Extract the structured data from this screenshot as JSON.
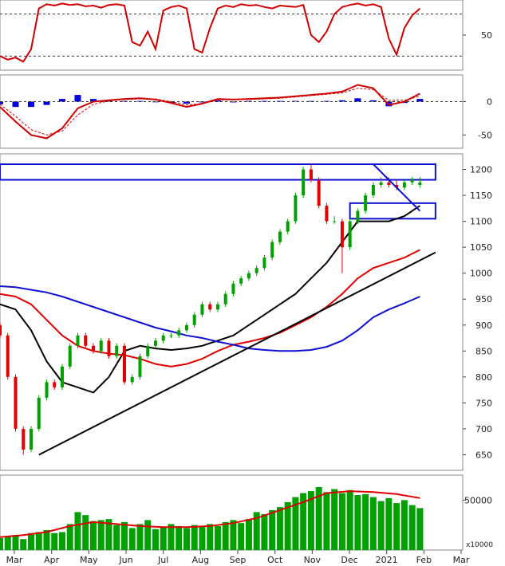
{
  "chart_data": {
    "type": "candlestick",
    "colors": {
      "up": "#00a000",
      "down": "#e00000",
      "ma_black": "#000000",
      "ma_red": "#e00000",
      "ma_blue": "#1010d0",
      "channel": "#1010d0",
      "volume": "#00a000",
      "volume_ma": "#e00000",
      "macd_hist": "#0000e0",
      "oscillator": "#d00000"
    },
    "x_axis": {
      "labels": [
        "Mar",
        "Apr",
        "May",
        "Jun",
        "Jul",
        "Aug",
        "Sep",
        "Oct",
        "Nov",
        "Dec",
        "2021",
        "Feb",
        "Mar"
      ]
    },
    "panels": [
      {
        "id": "oscillator",
        "ylim": [
          0,
          100
        ],
        "ticks": [
          "50"
        ],
        "reference_lines": [
          80,
          20
        ],
        "series": [
          {
            "x": [
              0,
              2,
              4,
              6,
              8,
              10,
              12,
              14,
              16,
              18,
              20,
              22,
              24,
              26,
              28,
              30,
              32,
              34,
              36,
              38,
              40,
              42,
              44,
              46,
              48,
              50,
              52,
              54,
              56,
              58,
              60,
              62,
              64,
              66,
              68,
              70,
              72,
              74,
              76,
              78,
              80,
              82,
              84,
              86,
              88,
              90,
              92,
              94,
              96,
              98,
              100,
              102,
              104,
              106,
              108
            ],
            "values": [
              20,
              15,
              18,
              12,
              30,
              88,
              94,
              92,
              95,
              93,
              94,
              91,
              92,
              89,
              93,
              94,
              92,
              40,
              35,
              55,
              30,
              85,
              90,
              92,
              88,
              30,
              25,
              60,
              88,
              92,
              90,
              94,
              92,
              93,
              90,
              88,
              92,
              91,
              90,
              93,
              50,
              40,
              55,
              80,
              90,
              93,
              95,
              92,
              94,
              90,
              45,
              22,
              60,
              78,
              88
            ]
          }
        ]
      },
      {
        "id": "macd",
        "ylim": [
          -70,
          40
        ],
        "ticks": [
          "0",
          "-50"
        ],
        "series": [
          {
            "name": "macd",
            "x": [
              0,
              4,
              8,
              12,
              16,
              20,
              24,
              28,
              32,
              36,
              40,
              44,
              48,
              52,
              56,
              60,
              64,
              68,
              72,
              76,
              80,
              84,
              88,
              92,
              96,
              100,
              104,
              108
            ],
            "values": [
              -8,
              -30,
              -50,
              -55,
              -40,
              -10,
              0,
              2,
              4,
              5,
              3,
              -2,
              -8,
              -3,
              4,
              3,
              4,
              5,
              6,
              8,
              10,
              12,
              15,
              25,
              20,
              -5,
              0,
              12
            ]
          },
          {
            "name": "signal",
            "x": [
              0,
              4,
              8,
              12,
              16,
              20,
              24,
              28,
              32,
              36,
              40,
              44,
              48,
              52,
              56,
              60,
              64,
              68,
              72,
              76,
              80,
              84,
              88,
              92,
              96,
              100,
              104,
              108
            ],
            "values": [
              -4,
              -22,
              -42,
              -50,
              -44,
              -20,
              -4,
              1,
              3,
              4,
              4,
              0,
              -5,
              -3,
              2,
              3,
              3,
              4,
              5,
              7,
              9,
              11,
              13,
              20,
              18,
              2,
              2,
              8
            ]
          },
          {
            "name": "histogram",
            "x": [
              0,
              4,
              8,
              12,
              16,
              20,
              24,
              28,
              32,
              36,
              40,
              44,
              48,
              52,
              56,
              60,
              64,
              68,
              72,
              76,
              80,
              84,
              88,
              92,
              96,
              100,
              104,
              108
            ],
            "values": [
              -4,
              -8,
              -8,
              -5,
              4,
              10,
              4,
              1,
              1,
              1,
              -1,
              -2,
              -3,
              0,
              2,
              0,
              1,
              1,
              1,
              1,
              1,
              1,
              2,
              5,
              2,
              -7,
              -2,
              4
            ]
          }
        ]
      },
      {
        "id": "price",
        "ylim": [
          620,
          1230
        ],
        "ticks": [
          "1200",
          "1150",
          "1100",
          "1050",
          "1000",
          "950",
          "900",
          "850",
          "800",
          "750",
          "700",
          "650"
        ],
        "candles": {
          "x": [
            0,
            2,
            4,
            6,
            8,
            10,
            12,
            14,
            16,
            18,
            20,
            22,
            24,
            26,
            28,
            30,
            32,
            34,
            36,
            38,
            40,
            42,
            44,
            46,
            48,
            50,
            52,
            54,
            56,
            58,
            60,
            62,
            64,
            66,
            68,
            70,
            72,
            74,
            76,
            78,
            80,
            82,
            84,
            86,
            88,
            90,
            92,
            94,
            96,
            98,
            100,
            102,
            104,
            106,
            108
          ],
          "open": [
            900,
            880,
            800,
            700,
            660,
            700,
            760,
            790,
            780,
            820,
            860,
            880,
            860,
            850,
            870,
            840,
            860,
            790,
            800,
            840,
            860,
            870,
            880,
            880,
            890,
            900,
            920,
            940,
            930,
            940,
            960,
            980,
            990,
            1000,
            1010,
            1030,
            1060,
            1080,
            1100,
            1150,
            1200,
            1180,
            1130,
            1100,
            1100,
            1050,
            1100,
            1120,
            1150,
            1170,
            1175,
            1170,
            1165,
            1175,
            1170
          ],
          "close": [
            880,
            800,
            700,
            660,
            700,
            760,
            790,
            780,
            820,
            860,
            880,
            860,
            850,
            870,
            840,
            860,
            790,
            800,
            840,
            860,
            870,
            880,
            880,
            890,
            900,
            920,
            940,
            930,
            940,
            960,
            980,
            990,
            1000,
            1010,
            1030,
            1060,
            1080,
            1100,
            1150,
            1200,
            1180,
            1130,
            1100,
            1100,
            1050,
            1100,
            1120,
            1150,
            1170,
            1175,
            1170,
            1165,
            1175,
            1180,
            1175
          ],
          "high": [
            905,
            885,
            805,
            705,
            705,
            765,
            795,
            795,
            825,
            865,
            885,
            885,
            865,
            875,
            875,
            865,
            865,
            805,
            845,
            865,
            875,
            885,
            885,
            895,
            905,
            925,
            945,
            945,
            945,
            965,
            985,
            995,
            1005,
            1015,
            1035,
            1065,
            1085,
            1105,
            1155,
            1205,
            1210,
            1185,
            1135,
            1110,
            1105,
            1105,
            1125,
            1155,
            1175,
            1185,
            1185,
            1180,
            1180,
            1185,
            1185
          ],
          "low": [
            875,
            795,
            695,
            650,
            655,
            695,
            755,
            775,
            775,
            815,
            855,
            855,
            845,
            845,
            835,
            835,
            785,
            785,
            795,
            835,
            855,
            865,
            875,
            875,
            885,
            895,
            915,
            925,
            925,
            935,
            955,
            975,
            985,
            995,
            1005,
            1025,
            1055,
            1075,
            1095,
            1145,
            1175,
            1125,
            1095,
            1095,
            1000,
            1045,
            1095,
            1115,
            1145,
            1165,
            1165,
            1160,
            1160,
            1170,
            1165
          ]
        },
        "moving_averages": [
          {
            "name": "ma_black",
            "color": "#000000",
            "x": [
              0,
              4,
              8,
              12,
              16,
              20,
              24,
              28,
              32,
              36,
              40,
              44,
              48,
              52,
              56,
              60,
              64,
              68,
              72,
              76,
              80,
              84,
              88,
              92,
              96,
              100,
              104,
              108
            ],
            "values": [
              940,
              930,
              890,
              830,
              790,
              780,
              770,
              800,
              850,
              860,
              855,
              852,
              855,
              860,
              870,
              880,
              900,
              920,
              940,
              960,
              990,
              1020,
              1060,
              1100,
              1100,
              1100,
              1110,
              1130
            ]
          },
          {
            "name": "ma_red",
            "color": "#e00000",
            "x": [
              0,
              4,
              8,
              12,
              16,
              20,
              24,
              28,
              32,
              36,
              40,
              44,
              48,
              52,
              56,
              60,
              64,
              68,
              72,
              76,
              80,
              84,
              88,
              92,
              96,
              100,
              104,
              108
            ],
            "values": [
              960,
              955,
              940,
              910,
              880,
              860,
              850,
              845,
              842,
              835,
              825,
              820,
              825,
              835,
              850,
              862,
              868,
              875,
              885,
              900,
              915,
              935,
              960,
              990,
              1010,
              1020,
              1030,
              1045
            ]
          },
          {
            "name": "ma_blue",
            "color": "#1010d0",
            "x": [
              0,
              4,
              8,
              12,
              16,
              20,
              24,
              28,
              32,
              36,
              40,
              44,
              48,
              52,
              56,
              60,
              64,
              68,
              72,
              76,
              80,
              84,
              88,
              92,
              96,
              100,
              104,
              108
            ],
            "values": [
              975,
              973,
              968,
              963,
              955,
              945,
              935,
              925,
              915,
              905,
              895,
              888,
              880,
              875,
              868,
              862,
              855,
              852,
              850,
              850,
              852,
              858,
              870,
              890,
              915,
              930,
              942,
              955
            ]
          }
        ],
        "trendlines": [
          {
            "x": [
              10,
              112
            ],
            "values": [
              650,
              1040
            ]
          },
          {
            "x": [
              96,
              108
            ],
            "values": [
              1210,
              1120
            ]
          }
        ],
        "channels": [
          {
            "x": [
              0,
              112
            ],
            "values": [
              1180,
              1210
            ]
          },
          {
            "x": [
              90,
              112
            ],
            "values": [
              1105,
              1135
            ]
          }
        ]
      },
      {
        "id": "volume",
        "ylim": [
          0,
          75000
        ],
        "ticks": [
          "50000"
        ],
        "unit_label": "x10000",
        "bars": {
          "x": [
            0,
            2,
            4,
            6,
            8,
            10,
            12,
            14,
            16,
            18,
            20,
            22,
            24,
            26,
            28,
            30,
            32,
            34,
            36,
            38,
            40,
            42,
            44,
            46,
            48,
            50,
            52,
            54,
            56,
            58,
            60,
            62,
            64,
            66,
            68,
            70,
            72,
            74,
            76,
            78,
            80,
            82,
            84,
            86,
            88,
            90,
            92,
            94,
            96,
            98,
            100,
            102,
            104,
            106,
            108
          ],
          "values": [
            12000,
            14000,
            15000,
            11000,
            17000,
            18000,
            20000,
            17000,
            18000,
            26000,
            38000,
            35000,
            29000,
            30000,
            31000,
            25000,
            28000,
            22000,
            26000,
            30000,
            21000,
            23000,
            26000,
            24000,
            22000,
            25000,
            23000,
            26000,
            24000,
            28000,
            30000,
            27000,
            31000,
            38000,
            36000,
            40000,
            43000,
            48000,
            53000,
            57000,
            59000,
            63000,
            58000,
            61000,
            57000,
            60000,
            55000,
            56000,
            53000,
            49000,
            52000,
            47000,
            50000,
            45000,
            42000
          ]
        },
        "ma": {
          "x": [
            0,
            6,
            12,
            18,
            24,
            30,
            36,
            42,
            48,
            54,
            60,
            66,
            72,
            78,
            84,
            90,
            96,
            102,
            108
          ],
          "values": [
            13000,
            15000,
            18000,
            24000,
            28000,
            26000,
            24000,
            23000,
            23000,
            24000,
            27000,
            32000,
            40000,
            48000,
            57000,
            59000,
            58000,
            56000,
            52000
          ]
        }
      }
    ]
  }
}
